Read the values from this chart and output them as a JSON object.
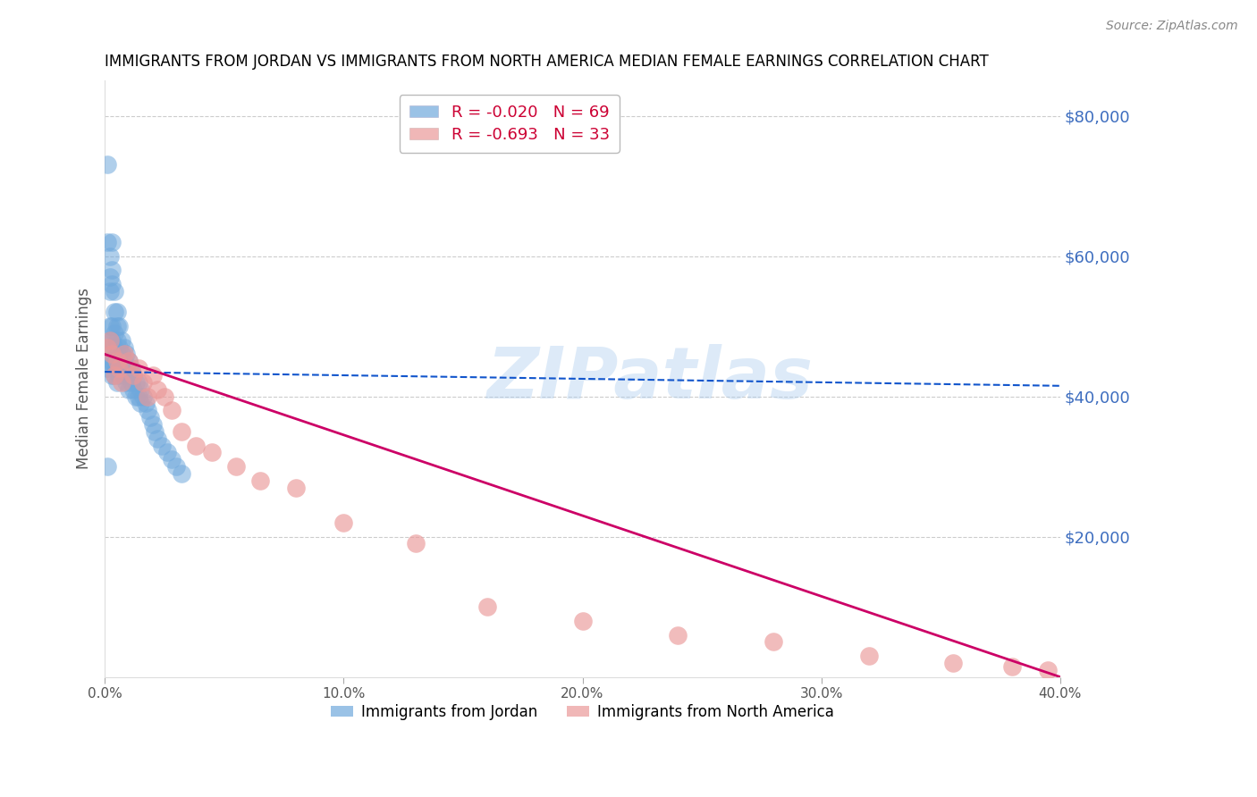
{
  "title": "IMMIGRANTS FROM JORDAN VS IMMIGRANTS FROM NORTH AMERICA MEDIAN FEMALE EARNINGS CORRELATION CHART",
  "source": "Source: ZipAtlas.com",
  "ylabel": "Median Female Earnings",
  "ytick_labels": [
    "$80,000",
    "$60,000",
    "$40,000",
    "$20,000"
  ],
  "ytick_values": [
    80000,
    60000,
    40000,
    20000
  ],
  "ylim": [
    0,
    85000
  ],
  "xlim": [
    0.0,
    0.4
  ],
  "xtick_values": [
    0.0,
    0.1,
    0.2,
    0.3,
    0.4
  ],
  "xtick_labels": [
    "0.0%",
    "10.0%",
    "20.0%",
    "30.0%",
    "40.0%"
  ],
  "jordan_R": -0.02,
  "jordan_N": 69,
  "north_america_R": -0.693,
  "north_america_N": 33,
  "jordan_color": "#6fa8dc",
  "north_america_color": "#ea9999",
  "jordan_line_color": "#1155cc",
  "north_america_line_color": "#cc0066",
  "watermark_text": "ZIPatlas",
  "watermark_color": "#aaccee",
  "jordan_legend_label_R": "R = -0.020",
  "jordan_legend_label_N": "N = 69",
  "na_legend_label_R": "R = -0.693",
  "na_legend_label_N": "N = 33",
  "bottom_legend_jordan": "Immigrants from Jordan",
  "bottom_legend_na": "Immigrants from North America",
  "jordan_x": [
    0.001,
    0.001,
    0.001,
    0.001,
    0.001,
    0.002,
    0.002,
    0.002,
    0.002,
    0.002,
    0.002,
    0.002,
    0.003,
    0.003,
    0.003,
    0.003,
    0.003,
    0.003,
    0.003,
    0.004,
    0.004,
    0.004,
    0.004,
    0.004,
    0.004,
    0.005,
    0.005,
    0.005,
    0.005,
    0.005,
    0.005,
    0.006,
    0.006,
    0.006,
    0.006,
    0.007,
    0.007,
    0.007,
    0.008,
    0.008,
    0.008,
    0.009,
    0.009,
    0.009,
    0.01,
    0.01,
    0.01,
    0.011,
    0.011,
    0.012,
    0.012,
    0.013,
    0.013,
    0.014,
    0.014,
    0.015,
    0.015,
    0.016,
    0.017,
    0.018,
    0.019,
    0.02,
    0.021,
    0.022,
    0.024,
    0.026,
    0.028,
    0.03,
    0.032
  ],
  "jordan_y": [
    73000,
    62000,
    45000,
    44000,
    30000,
    60000,
    57000,
    55000,
    50000,
    48000,
    47000,
    45000,
    62000,
    58000,
    56000,
    50000,
    48000,
    45000,
    43000,
    55000,
    52000,
    49000,
    47000,
    45000,
    43000,
    52000,
    50000,
    48000,
    46000,
    44000,
    42000,
    50000,
    47000,
    45000,
    43000,
    48000,
    46000,
    44000,
    47000,
    45000,
    43000,
    46000,
    44000,
    42000,
    45000,
    43000,
    41000,
    44000,
    42000,
    43000,
    41000,
    42000,
    40000,
    42000,
    40000,
    41000,
    39000,
    40000,
    39000,
    38000,
    37000,
    36000,
    35000,
    34000,
    33000,
    32000,
    31000,
    30000,
    29000
  ],
  "north_america_x": [
    0.001,
    0.002,
    0.003,
    0.004,
    0.005,
    0.006,
    0.007,
    0.008,
    0.01,
    0.012,
    0.014,
    0.016,
    0.018,
    0.02,
    0.022,
    0.025,
    0.028,
    0.032,
    0.038,
    0.045,
    0.055,
    0.065,
    0.08,
    0.1,
    0.13,
    0.16,
    0.2,
    0.24,
    0.28,
    0.32,
    0.355,
    0.38,
    0.395
  ],
  "north_america_y": [
    47000,
    48000,
    46000,
    43000,
    45000,
    44000,
    42000,
    46000,
    45000,
    43000,
    44000,
    42000,
    40000,
    43000,
    41000,
    40000,
    38000,
    35000,
    33000,
    32000,
    30000,
    28000,
    27000,
    22000,
    19000,
    10000,
    8000,
    6000,
    5000,
    3000,
    2000,
    1500,
    1000
  ],
  "jordan_line_x0": 0.0,
  "jordan_line_y0": 43500,
  "jordan_line_x1": 0.4,
  "jordan_line_y1": 41500,
  "na_line_x0": 0.0,
  "na_line_y0": 46000,
  "na_line_x1": 0.4,
  "na_line_y1": 0
}
